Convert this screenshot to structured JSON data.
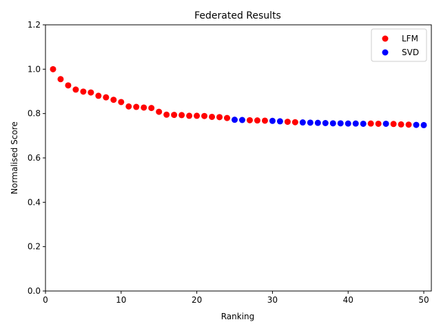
{
  "chart_data": {
    "type": "scatter",
    "title": "Federated Results",
    "xlabel": "Ranking",
    "ylabel": "Normalised Score",
    "xlim": [
      0,
      51
    ],
    "ylim": [
      0,
      1.2
    ],
    "xticks": [
      0,
      10,
      20,
      30,
      40,
      50
    ],
    "yticks": [
      0.0,
      0.2,
      0.4,
      0.6,
      0.8,
      1.0,
      1.2
    ],
    "xtick_labels": [
      "0",
      "10",
      "20",
      "30",
      "40",
      "50"
    ],
    "ytick_labels": [
      "0.0",
      "0.2",
      "0.4",
      "0.6",
      "0.8",
      "1.0",
      "1.2"
    ],
    "grid": false,
    "legend_position": "top-right",
    "series": [
      {
        "name": "LFM",
        "color": "#ff0000",
        "x": [
          1,
          2,
          3,
          4,
          5,
          6,
          7,
          8,
          9,
          10,
          11,
          12,
          13,
          14,
          15,
          16,
          17,
          18,
          19,
          20,
          21,
          22,
          23,
          24,
          27,
          28,
          29,
          32,
          33,
          43,
          44,
          46,
          47,
          48
        ],
        "y": [
          1.0,
          0.955,
          0.927,
          0.908,
          0.899,
          0.895,
          0.88,
          0.873,
          0.862,
          0.852,
          0.832,
          0.83,
          0.827,
          0.825,
          0.808,
          0.795,
          0.794,
          0.793,
          0.79,
          0.79,
          0.789,
          0.785,
          0.784,
          0.78,
          0.77,
          0.769,
          0.768,
          0.763,
          0.761,
          0.755,
          0.754,
          0.753,
          0.751,
          0.75
        ]
      },
      {
        "name": "SVD",
        "color": "#0000ff",
        "x": [
          25,
          26,
          30,
          31,
          34,
          35,
          36,
          37,
          38,
          39,
          40,
          41,
          42,
          45,
          49,
          50
        ],
        "y": [
          0.772,
          0.771,
          0.767,
          0.765,
          0.76,
          0.759,
          0.758,
          0.757,
          0.756,
          0.756,
          0.755,
          0.755,
          0.754,
          0.754,
          0.749,
          0.748
        ]
      }
    ]
  }
}
